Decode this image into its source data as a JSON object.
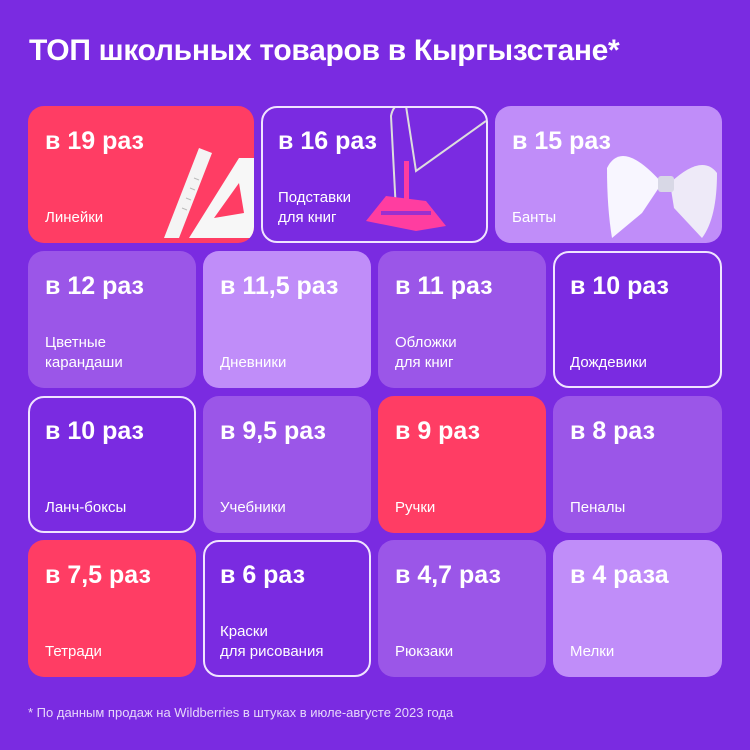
{
  "title": "ТОП школьных товаров в Кыргызстане*",
  "colors": {
    "background": "#7a2be1",
    "pink": "#ff3d64",
    "medium": "#9b56e8",
    "light": "#c08df9",
    "outline": "#f0e4ff"
  },
  "tiles": [
    {
      "value": "в 19 раз",
      "label": "Линейки",
      "style": "pink",
      "icon": "rulers-image"
    },
    {
      "value": "в 16 раз",
      "label": "Подставки\nдля книг",
      "style": "outlined",
      "icon": "book-stand-image"
    },
    {
      "value": "в 15 раз",
      "label": "Банты",
      "style": "light",
      "icon": "bow-image"
    },
    {
      "value": "в 12 раз",
      "label": "Цветные\nкарандаши",
      "style": "medium"
    },
    {
      "value": "в 11,5 раз",
      "label": "Дневники",
      "style": "light"
    },
    {
      "value": "в 11 раз",
      "label": "Обложки\nдля книг",
      "style": "medium"
    },
    {
      "value": "в 10 раз",
      "label": "Дождевики",
      "style": "outlined"
    },
    {
      "value": "в 10 раз",
      "label": "Ланч-боксы",
      "style": "outlined"
    },
    {
      "value": "в 9,5 раз",
      "label": "Учебники",
      "style": "medium"
    },
    {
      "value": "в 9 раз",
      "label": "Ручки",
      "style": "pink"
    },
    {
      "value": "в 8 раз",
      "label": "Пеналы",
      "style": "medium"
    },
    {
      "value": "в 7,5 раз",
      "label": "Тетради",
      "style": "pink"
    },
    {
      "value": "в 6 раз",
      "label": "Краски\nдля рисования",
      "style": "outlined"
    },
    {
      "value": "в 4,7 раз",
      "label": "Рюкзаки",
      "style": "medium"
    },
    {
      "value": "в 4 раза",
      "label": "Мелки",
      "style": "light"
    }
  ],
  "footnote": "* По данным продаж на Wildberries в штуках в июле-августе 2023 года"
}
